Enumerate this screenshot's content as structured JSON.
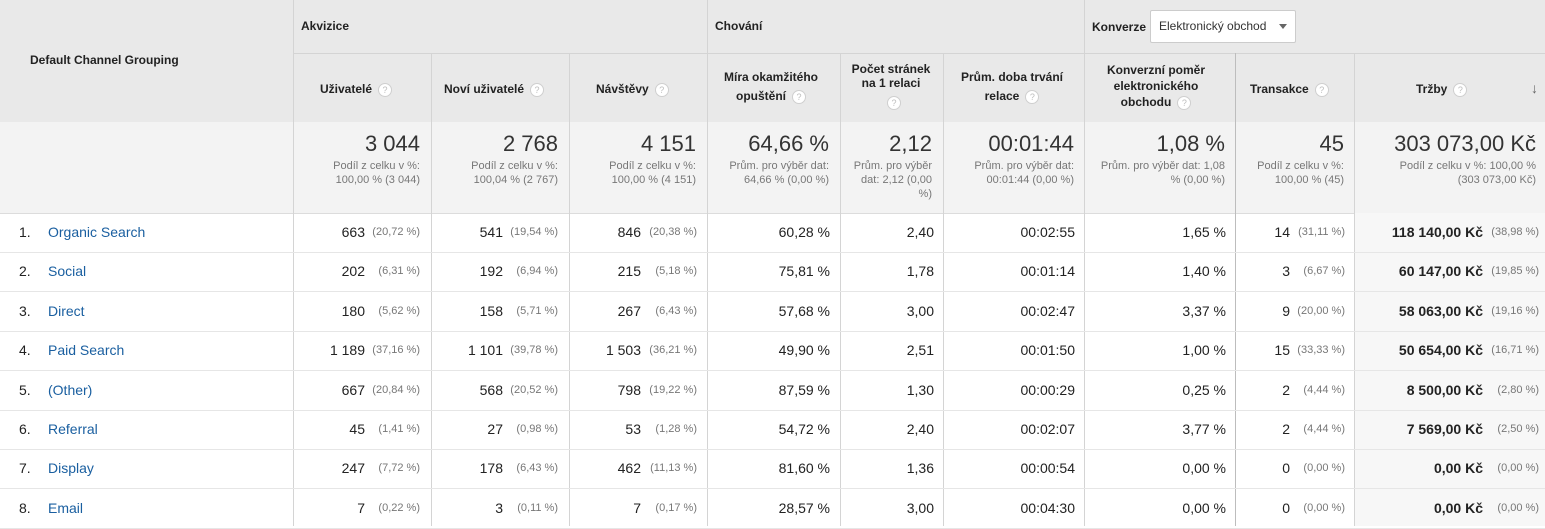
{
  "header": {
    "dimension_label": "Default Channel Grouping",
    "group_acquisition": "Akvizice",
    "group_behavior": "Chování",
    "group_conversion": "Konverze",
    "conversion_select": "Elektronický obchod",
    "columns": [
      {
        "label": "Uživatelé"
      },
      {
        "label": "Noví uživatelé"
      },
      {
        "label": "Návštěvy"
      },
      {
        "label": "Míra okamžitého opuštění"
      },
      {
        "label": "Počet stránek na 1 relaci"
      },
      {
        "label": "Prům. doba trvání relace"
      },
      {
        "label": "Konverzní poměr elektronického obchodu"
      },
      {
        "label": "Transakce"
      },
      {
        "label": "Tržby"
      }
    ],
    "help_icon_glyph": "?",
    "sort_icon_glyph": "↓"
  },
  "totals": [
    {
      "value": "3 044",
      "sub": "Podíl z celku v %: 100,00 % (3 044)"
    },
    {
      "value": "2 768",
      "sub": "Podíl z celku v %: 100,04 % (2 767)"
    },
    {
      "value": "4 151",
      "sub": "Podíl z celku v %: 100,00 % (4 151)"
    },
    {
      "value": "64,66 %",
      "sub": "Prům. pro výběr dat: 64,66 % (0,00 %)"
    },
    {
      "value": "2,12",
      "sub": "Prům. pro výběr dat: 2,12 (0,00 %)"
    },
    {
      "value": "00:01:44",
      "sub": "Prům. pro výběr dat: 00:01:44 (0,00 %)"
    },
    {
      "value": "1,08 %",
      "sub": "Prům. pro výběr dat: 1,08 % (0,00 %)"
    },
    {
      "value": "45",
      "sub": "Podíl z celku v %: 100,00 % (45)"
    },
    {
      "value": "303 073,00 Kč",
      "sub": "Podíl z celku v %: 100,00 % (303 073,00 Kč)"
    }
  ],
  "rows": [
    {
      "idx": "1.",
      "name": "Organic Search",
      "users": "663",
      "users_pct": "(20,72 %)",
      "new": "541",
      "new_pct": "(19,54 %)",
      "visits": "846",
      "visits_pct": "(20,38 %)",
      "bounce": "60,28 %",
      "pages": "2,40",
      "duration": "00:02:55",
      "conv": "1,65 %",
      "trans": "14",
      "trans_pct": "(31,11 %)",
      "rev": "118 140,00 Kč",
      "rev_pct": "(38,98 %)"
    },
    {
      "idx": "2.",
      "name": "Social",
      "users": "202",
      "users_pct": "(6,31 %)",
      "new": "192",
      "new_pct": "(6,94 %)",
      "visits": "215",
      "visits_pct": "(5,18 %)",
      "bounce": "75,81 %",
      "pages": "1,78",
      "duration": "00:01:14",
      "conv": "1,40 %",
      "trans": "3",
      "trans_pct": "(6,67 %)",
      "rev": "60 147,00 Kč",
      "rev_pct": "(19,85 %)"
    },
    {
      "idx": "3.",
      "name": "Direct",
      "users": "180",
      "users_pct": "(5,62 %)",
      "new": "158",
      "new_pct": "(5,71 %)",
      "visits": "267",
      "visits_pct": "(6,43 %)",
      "bounce": "57,68 %",
      "pages": "3,00",
      "duration": "00:02:47",
      "conv": "3,37 %",
      "trans": "9",
      "trans_pct": "(20,00 %)",
      "rev": "58 063,00 Kč",
      "rev_pct": "(19,16 %)"
    },
    {
      "idx": "4.",
      "name": "Paid Search",
      "users": "1 189",
      "users_pct": "(37,16 %)",
      "new": "1 101",
      "new_pct": "(39,78 %)",
      "visits": "1 503",
      "visits_pct": "(36,21 %)",
      "bounce": "49,90 %",
      "pages": "2,51",
      "duration": "00:01:50",
      "conv": "1,00 %",
      "trans": "15",
      "trans_pct": "(33,33 %)",
      "rev": "50 654,00 Kč",
      "rev_pct": "(16,71 %)"
    },
    {
      "idx": "5.",
      "name": "(Other)",
      "users": "667",
      "users_pct": "(20,84 %)",
      "new": "568",
      "new_pct": "(20,52 %)",
      "visits": "798",
      "visits_pct": "(19,22 %)",
      "bounce": "87,59 %",
      "pages": "1,30",
      "duration": "00:00:29",
      "conv": "0,25 %",
      "trans": "2",
      "trans_pct": "(4,44 %)",
      "rev": "8 500,00 Kč",
      "rev_pct": "(2,80 %)"
    },
    {
      "idx": "6.",
      "name": "Referral",
      "users": "45",
      "users_pct": "(1,41 %)",
      "new": "27",
      "new_pct": "(0,98 %)",
      "visits": "53",
      "visits_pct": "(1,28 %)",
      "bounce": "54,72 %",
      "pages": "2,40",
      "duration": "00:02:07",
      "conv": "3,77 %",
      "trans": "2",
      "trans_pct": "(4,44 %)",
      "rev": "7 569,00 Kč",
      "rev_pct": "(2,50 %)"
    },
    {
      "idx": "7.",
      "name": "Display",
      "users": "247",
      "users_pct": "(7,72 %)",
      "new": "178",
      "new_pct": "(6,43 %)",
      "visits": "462",
      "visits_pct": "(11,13 %)",
      "bounce": "81,60 %",
      "pages": "1,36",
      "duration": "00:00:54",
      "conv": "0,00 %",
      "trans": "0",
      "trans_pct": "(0,00 %)",
      "rev": "0,00 Kč",
      "rev_pct": "(0,00 %)"
    },
    {
      "idx": "8.",
      "name": "Email",
      "users": "7",
      "users_pct": "(0,22 %)",
      "new": "3",
      "new_pct": "(0,11 %)",
      "visits": "7",
      "visits_pct": "(0,17 %)",
      "bounce": "28,57 %",
      "pages": "3,00",
      "duration": "00:04:30",
      "conv": "0,00 %",
      "trans": "0",
      "trans_pct": "(0,00 %)",
      "rev": "0,00 Kč",
      "rev_pct": "(0,00 %)"
    }
  ]
}
